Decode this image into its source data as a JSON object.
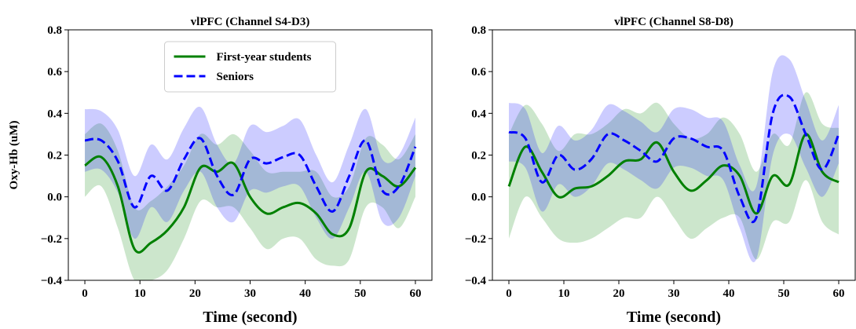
{
  "chart_data": [
    {
      "type": "line",
      "title": "vlPFC (Channel S4-D3)",
      "x_label": "Time (second)",
      "y_label": "Oxy-Hb (uM)",
      "x": [
        0,
        3,
        6,
        9,
        12,
        15,
        18,
        21,
        24,
        27,
        30,
        33,
        36,
        39,
        42,
        45,
        48,
        51,
        54,
        57,
        60
      ],
      "xlim": [
        -3,
        63
      ],
      "xticks": [
        0,
        10,
        20,
        30,
        40,
        50,
        60
      ],
      "ylim": [
        -0.4,
        0.8
      ],
      "yticks": [
        {
          "value": -0.4,
          "label": "−0.4"
        },
        {
          "value": -0.2,
          "label": "−0.2"
        },
        {
          "value": 0,
          "label": "0.0"
        },
        0.2,
        0.4,
        0.6,
        0.8
      ],
      "legend": "upper center",
      "series": [
        {
          "name": "First-year students",
          "color": "#008000",
          "dash": false,
          "values": [
            0.15,
            0.19,
            0.05,
            -0.25,
            -0.22,
            -0.16,
            -0.05,
            0.14,
            0.12,
            0.16,
            0.0,
            -0.08,
            -0.05,
            -0.03,
            -0.08,
            -0.18,
            -0.15,
            0.12,
            0.1,
            0.05,
            0.14
          ],
          "lower": [
            0.0,
            0.05,
            -0.15,
            -0.4,
            -0.4,
            -0.35,
            -0.2,
            -0.02,
            -0.05,
            -0.05,
            -0.15,
            -0.25,
            -0.2,
            -0.2,
            -0.3,
            -0.33,
            -0.3,
            -0.05,
            -0.05,
            -0.15,
            0.0
          ],
          "upper": [
            0.3,
            0.35,
            0.22,
            -0.05,
            -0.02,
            0.05,
            0.15,
            0.3,
            0.25,
            0.3,
            0.22,
            0.12,
            0.12,
            0.12,
            0.12,
            0.0,
            0.05,
            0.28,
            0.25,
            0.18,
            0.3
          ]
        },
        {
          "name": "Seniors",
          "color": "#0000ff",
          "dash": true,
          "values": [
            0.27,
            0.27,
            0.17,
            -0.05,
            0.1,
            0.03,
            0.18,
            0.28,
            0.1,
            0.01,
            0.18,
            0.16,
            0.19,
            0.2,
            0.05,
            -0.07,
            0.1,
            0.27,
            0.03,
            0.05,
            0.24
          ],
          "lower": [
            0.12,
            0.13,
            0.02,
            -0.2,
            -0.05,
            -0.12,
            0.03,
            0.12,
            -0.05,
            -0.12,
            0.03,
            0.02,
            0.05,
            0.05,
            -0.1,
            -0.2,
            -0.05,
            0.12,
            -0.12,
            -0.1,
            0.1
          ],
          "upper": [
            0.42,
            0.41,
            0.32,
            0.1,
            0.25,
            0.18,
            0.33,
            0.43,
            0.25,
            0.16,
            0.34,
            0.31,
            0.34,
            0.37,
            0.2,
            0.07,
            0.25,
            0.42,
            0.18,
            0.2,
            0.38
          ]
        }
      ]
    },
    {
      "type": "line",
      "title": "vlPFC (Channel S8-D8)",
      "x_label": "Time (second)",
      "x": [
        0,
        3,
        6,
        9,
        12,
        15,
        18,
        21,
        24,
        27,
        30,
        33,
        36,
        39,
        42,
        45,
        48,
        51,
        54,
        57,
        60
      ],
      "xlim": [
        -3,
        63
      ],
      "xticks": [
        0,
        10,
        20,
        30,
        40,
        50,
        60
      ],
      "ylim": [
        -0.4,
        0.8
      ],
      "yticks": [
        {
          "value": -0.4,
          "label": "−0.4"
        },
        {
          "value": -0.2,
          "label": "−0.2"
        },
        {
          "value": 0,
          "label": "0.0"
        },
        0.2,
        0.4,
        0.6,
        0.8
      ],
      "series": [
        {
          "color": "#008000",
          "dash": false,
          "values": [
            0.05,
            0.24,
            0.12,
            0.0,
            0.04,
            0.05,
            0.1,
            0.17,
            0.18,
            0.26,
            0.12,
            0.03,
            0.08,
            0.15,
            0.1,
            -0.08,
            0.1,
            0.06,
            0.3,
            0.12,
            0.07
          ],
          "lower": [
            -0.2,
            0.0,
            -0.1,
            -0.2,
            -0.22,
            -0.2,
            -0.15,
            -0.1,
            -0.1,
            0.0,
            -0.1,
            -0.2,
            -0.15,
            -0.1,
            -0.1,
            -0.3,
            -0.12,
            -0.12,
            0.08,
            -0.12,
            -0.18
          ],
          "upper": [
            0.3,
            0.44,
            0.35,
            0.22,
            0.3,
            0.3,
            0.35,
            0.42,
            0.4,
            0.45,
            0.35,
            0.28,
            0.3,
            0.38,
            0.3,
            0.12,
            0.3,
            0.25,
            0.5,
            0.35,
            0.33
          ]
        },
        {
          "color": "#0000ff",
          "dash": true,
          "values": [
            0.31,
            0.28,
            0.07,
            0.2,
            0.13,
            0.18,
            0.3,
            0.27,
            0.22,
            0.17,
            0.28,
            0.28,
            0.24,
            0.22,
            0.0,
            -0.1,
            0.4,
            0.48,
            0.3,
            0.13,
            0.3
          ],
          "lower": [
            0.17,
            0.14,
            -0.07,
            0.06,
            0.0,
            0.05,
            0.16,
            0.13,
            0.08,
            0.04,
            0.14,
            0.14,
            0.1,
            0.08,
            -0.15,
            -0.3,
            0.2,
            0.3,
            0.14,
            0.0,
            0.16
          ],
          "upper": [
            0.45,
            0.42,
            0.21,
            0.34,
            0.27,
            0.32,
            0.44,
            0.41,
            0.36,
            0.31,
            0.42,
            0.42,
            0.38,
            0.36,
            0.15,
            0.05,
            0.6,
            0.66,
            0.46,
            0.27,
            0.44
          ]
        }
      ]
    }
  ]
}
